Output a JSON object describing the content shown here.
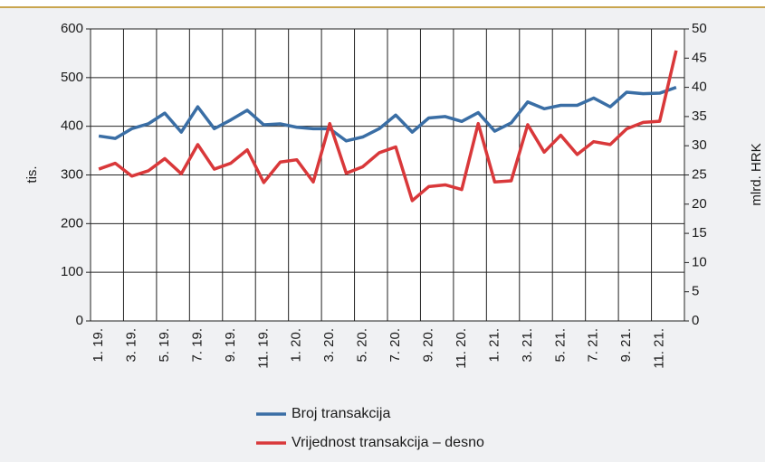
{
  "chart_data": {
    "type": "line",
    "categories": [
      "1. 19.",
      null,
      "3. 19.",
      null,
      "5. 19.",
      null,
      "7. 19.",
      null,
      "9. 19.",
      null,
      "11. 19.",
      null,
      "1. 20.",
      null,
      "3. 20.",
      null,
      "5. 20.",
      null,
      "7. 20.",
      null,
      "9. 20.",
      null,
      "11. 20.",
      null,
      "1. 21.",
      null,
      "3. 21.",
      null,
      "5. 21.",
      null,
      "7. 21.",
      null,
      "9. 21.",
      null,
      "11. 21.",
      null
    ],
    "series": [
      {
        "name": "Broj transakcija",
        "color": "#3a6ea5",
        "values": [
          380,
          375,
          395,
          405,
          427,
          388,
          440,
          395,
          413,
          433,
          403,
          405,
          398,
          395,
          395,
          370,
          378,
          395,
          423,
          388,
          417,
          420,
          410,
          428,
          390,
          407,
          450,
          436,
          443,
          443,
          458,
          440,
          470,
          467,
          468,
          480
        ]
      },
      {
        "name": "Vrijednost transakcija – desno",
        "color": "#d9383a",
        "axis": "y2",
        "values": [
          26,
          27,
          24.8,
          25.7,
          27.8,
          25.2,
          30.2,
          26,
          27,
          29.3,
          23.7,
          27.2,
          27.6,
          23.8,
          33.8,
          25.3,
          26.4,
          28.8,
          29.8,
          20.6,
          23,
          23.3,
          22.5,
          33.8,
          23.8,
          24,
          33.6,
          28.9,
          31.8,
          28.5,
          30.7,
          30.2,
          32.9,
          34,
          34.2,
          46.3
        ]
      }
    ],
    "ylabel": "tis.",
    "y2label": "mlrd. HRK",
    "ylim": [
      0,
      600
    ],
    "yticks": [
      0,
      100,
      200,
      300,
      400,
      500,
      600
    ],
    "y2lim": [
      0,
      50
    ],
    "y2ticks": [
      0,
      5,
      10,
      15,
      20,
      25,
      30,
      35,
      40,
      45,
      50
    ],
    "grid": true
  }
}
